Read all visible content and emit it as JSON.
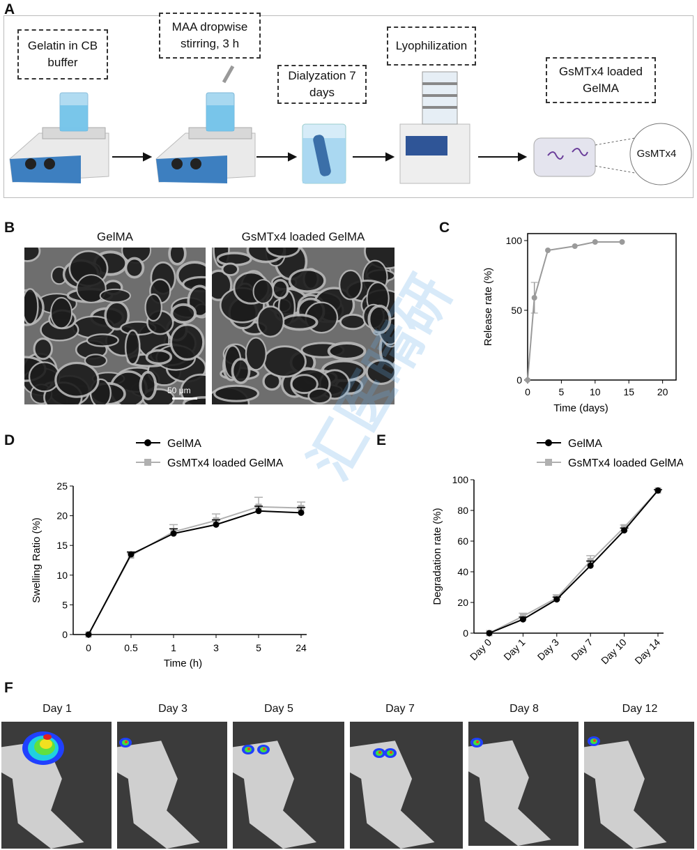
{
  "panels": {
    "A": {
      "label": "A",
      "steps": [
        {
          "text": "Gelatin in CB buffer"
        },
        {
          "text": "MAA dropwise stirring, 3 h"
        },
        {
          "text": "Dialyzation 7 days"
        },
        {
          "text": "Lyophilization"
        },
        {
          "text": "GsMTx4 loaded GelMA"
        }
      ],
      "zoom_label": "GsMTx4"
    },
    "B": {
      "label": "B",
      "left_title": "GelMA",
      "right_title": "GsMTx4 loaded  GelMA",
      "scale_bar": "50 μm"
    },
    "F": {
      "label": "F",
      "days": [
        "Day 1",
        "Day 3",
        "Day 5",
        "Day 7",
        "Day 8",
        "Day 12"
      ]
    }
  },
  "watermark": "汇医晴研",
  "chart_data": [
    {
      "panel": "C",
      "type": "line",
      "xlabel": "Time (days)",
      "ylabel": "Release rate (%)",
      "xlim": [
        0,
        22
      ],
      "ylim": [
        0,
        105
      ],
      "xticks": [
        0,
        5,
        10,
        15,
        20
      ],
      "yticks": [
        0,
        50,
        100
      ],
      "series": [
        {
          "color": "#9a9a9a",
          "x": [
            0,
            1,
            3,
            7,
            10,
            14
          ],
          "y": [
            0,
            59,
            93,
            96,
            99,
            99
          ],
          "err": [
            0,
            11,
            0,
            0,
            0,
            0
          ]
        }
      ]
    },
    {
      "panel": "D",
      "type": "line",
      "xlabel": "Time (h)",
      "ylabel": "Swelling Ratio (%)",
      "categories": [
        "0",
        "0.5",
        "1",
        "3",
        "5",
        "24"
      ],
      "ylim": [
        0,
        25
      ],
      "yticks": [
        0,
        5,
        10,
        15,
        20,
        25
      ],
      "series": [
        {
          "name": "GelMA",
          "color": "#000000",
          "values": [
            0,
            13.5,
            17.0,
            18.5,
            20.8,
            20.5
          ],
          "err": [
            0,
            0.4,
            0.8,
            0.8,
            0.8,
            0.9
          ]
        },
        {
          "name": "GsMTx4 loaded GelMA",
          "color": "#b0b0b0",
          "values": [
            0,
            13.3,
            17.3,
            19.2,
            21.5,
            21.3
          ],
          "err": [
            0,
            0.4,
            1.2,
            1.1,
            1.6,
            1.0
          ]
        }
      ]
    },
    {
      "panel": "E",
      "type": "line",
      "ylabel": "Degradation rate (%)",
      "categories": [
        "Day 0",
        "Day 1",
        "Day 3",
        "Day 7",
        "Day 10",
        "Day 14"
      ],
      "ylim": [
        0,
        100
      ],
      "yticks": [
        0,
        20,
        40,
        60,
        80,
        100
      ],
      "series": [
        {
          "name": "GelMA",
          "color": "#000000",
          "values": [
            0,
            9,
            22,
            44,
            67,
            93
          ],
          "err": [
            0,
            1.5,
            1.5,
            3,
            1.5,
            0.5
          ]
        },
        {
          "name": "GsMTx4 loaded GelMA",
          "color": "#b0b0b0",
          "values": [
            0,
            11,
            23,
            47,
            69,
            93
          ],
          "err": [
            0,
            2,
            2,
            3.5,
            1.5,
            0.5
          ]
        }
      ]
    }
  ]
}
